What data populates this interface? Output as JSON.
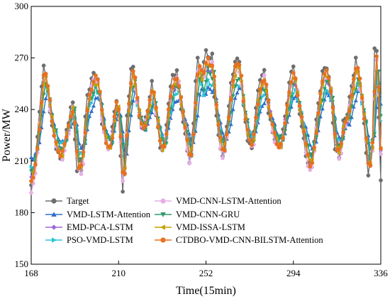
{
  "chart_data": {
    "type": "line",
    "xlabel": "Time(15min)",
    "ylabel": "Power/MW",
    "xlim": [
      168,
      336
    ],
    "ylim": [
      150,
      300
    ],
    "xticks": [
      168,
      210,
      252,
      294,
      336
    ],
    "yticks": [
      150,
      180,
      210,
      240,
      270,
      300
    ],
    "grid": false,
    "legend_position": "bottom-center",
    "series": [
      {
        "name": "Target",
        "color": "#6e6e6e",
        "marker": "circle",
        "amp": 1.0,
        "damp": 1.0,
        "bias": 0,
        "phase": 0,
        "jitter": 3
      },
      {
        "name": "VMD-LSTM-Attention",
        "color": "#2f6fc9",
        "marker": "triangle-up",
        "amp": 0.55,
        "damp": 0.55,
        "bias": -1,
        "phase": 1.5,
        "jitter": 2
      },
      {
        "name": "EMD-PCA-LSTM",
        "color": "#a066d8",
        "marker": "diamond",
        "amp": 0.82,
        "damp": 0.9,
        "bias": 0,
        "phase": 0.5,
        "jitter": 3
      },
      {
        "name": "PSO-VMD-LSTM",
        "color": "#2cc4d8",
        "marker": "triangle-right",
        "amp": 0.62,
        "damp": 0.7,
        "bias": 0,
        "phase": 1.0,
        "jitter": 3
      },
      {
        "name": "VMD-CNN-LSTM-Attention",
        "color": "#e6aee6",
        "marker": "circle",
        "amp": 0.9,
        "damp": 1.05,
        "bias": -1,
        "phase": 0.5,
        "jitter": 3
      },
      {
        "name": "VMD-CNN-GRU",
        "color": "#2e9a6c",
        "marker": "triangle-down",
        "amp": 0.72,
        "damp": 0.75,
        "bias": 0,
        "phase": 1.0,
        "jitter": 3
      },
      {
        "name": "VMD-ISSA-LSTM",
        "color": "#c6a200",
        "marker": "triangle-left",
        "amp": 0.86,
        "damp": 0.95,
        "bias": 0,
        "phase": 0.5,
        "jitter": 3
      },
      {
        "name": "CTDBO-VMD-CNN-BILSTM-Attention",
        "color": "#e8701e",
        "marker": "circle",
        "amp": 0.93,
        "damp": 0.97,
        "bias": 0,
        "phase": 0.5,
        "jitter": 2
      }
    ],
    "target_profile": {
      "x": [
        168,
        170,
        172,
        173,
        174,
        176,
        178,
        180,
        182,
        184,
        186,
        187,
        188,
        190,
        192,
        195,
        198,
        200,
        202,
        204,
        206,
        208,
        209,
        210,
        211,
        212,
        214,
        216,
        217,
        218,
        220,
        222,
        224,
        226,
        228,
        230,
        232,
        234,
        236,
        238,
        240,
        242,
        244,
        246,
        247,
        248,
        250,
        251,
        252,
        254,
        255,
        256,
        258,
        260,
        262,
        264,
        266,
        268,
        270,
        272,
        274,
        276,
        278,
        280,
        282,
        284,
        286,
        288,
        290,
        292,
        294,
        296,
        298,
        300,
        302,
        304,
        306,
        308,
        310,
        312,
        314,
        316,
        318,
        320,
        322,
        324,
        326,
        328,
        330,
        332,
        333,
        334,
        336
      ],
      "y": [
        196,
        210,
        237,
        255,
        268,
        250,
        228,
        218,
        212,
        221,
        232,
        240,
        242,
        206,
        206,
        247,
        262,
        258,
        232,
        218,
        219,
        241,
        246,
        235,
        212,
        192,
        237,
        264,
        265,
        252,
        233,
        229,
        242,
        255,
        236,
        218,
        219,
        245,
        258,
        262,
        243,
        225,
        208,
        232,
        258,
        270,
        261,
        266,
        273,
        268,
        272,
        250,
        225,
        212,
        230,
        255,
        270,
        267,
        240,
        224,
        218,
        240,
        257,
        262,
        240,
        227,
        218,
        220,
        237,
        255,
        265,
        247,
        232,
        214,
        204,
        222,
        245,
        262,
        264,
        250,
        218,
        214,
        231,
        237,
        255,
        270,
        254,
        230,
        202,
        225,
        276,
        272,
        198
      ]
    }
  }
}
